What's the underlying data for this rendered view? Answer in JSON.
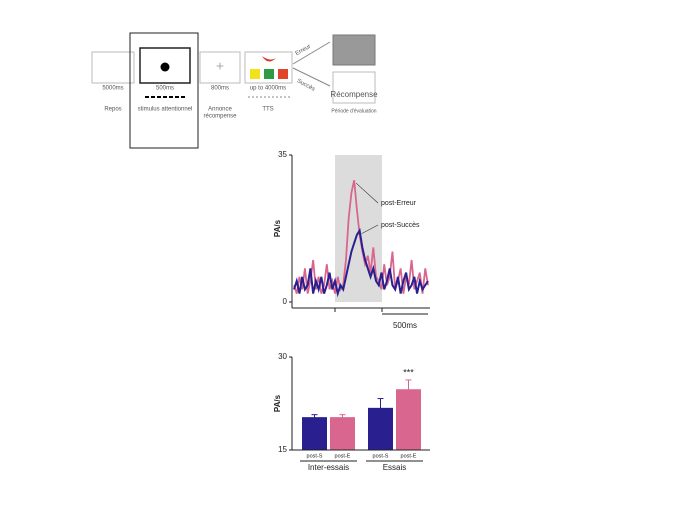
{
  "diagram": {
    "durations": [
      "5000ms",
      "500ms",
      "800ms",
      "up to 4000ms"
    ],
    "phases": [
      "Repos",
      "stimulus attentionnel",
      "Annonce",
      "récompense",
      "TTS"
    ],
    "branches": [
      "Erreur",
      "Succès"
    ],
    "reward": "Récompense",
    "evaluation": "Période d'évaluation"
  },
  "chart_data": [
    {
      "type": "line",
      "ylabel": "PA/s",
      "ylim": [
        0,
        35
      ],
      "yticks": [
        0,
        35
      ],
      "scale_bar": "500ms",
      "series": [
        {
          "name": "post-Erreur",
          "color": "#d9668f",
          "values": [
            4,
            2,
            6,
            3,
            8,
            2,
            5,
            10,
            3,
            6,
            2,
            4,
            9,
            3,
            5,
            2,
            6,
            3,
            4,
            10,
            20,
            26,
            29,
            22,
            16,
            12,
            9,
            11,
            7,
            13,
            6,
            5,
            3,
            9,
            4,
            6,
            12,
            3,
            5,
            8,
            2,
            6,
            4,
            10,
            3,
            5,
            7,
            2,
            8,
            4
          ]
        },
        {
          "name": "post-Succès",
          "color": "#2a1f8f",
          "values": [
            3,
            5,
            2,
            6,
            3,
            4,
            8,
            2,
            5,
            3,
            6,
            2,
            4,
            7,
            3,
            5,
            2,
            4,
            3,
            6,
            9,
            12,
            14,
            16,
            17,
            13,
            10,
            8,
            6,
            8,
            5,
            4,
            7,
            3,
            5,
            8,
            4,
            3,
            6,
            2,
            5,
            7,
            3,
            4,
            6,
            2,
            5,
            3,
            4,
            5
          ]
        }
      ]
    },
    {
      "type": "bar",
      "ylabel": "PA/s",
      "ylim": [
        15,
        30
      ],
      "yticks": [
        15,
        30
      ],
      "categories": [
        "post-S",
        "post-E",
        "post-S",
        "post-E"
      ],
      "values": [
        20.3,
        20.3,
        21.8,
        24.8
      ],
      "errors": [
        0.4,
        0.4,
        1.5,
        1.5
      ],
      "colors": [
        "#2a1f8f",
        "#d9668f",
        "#2a1f8f",
        "#d9668f"
      ],
      "groups": [
        "Inter-essais",
        "Essais"
      ],
      "annotation": "***"
    }
  ]
}
